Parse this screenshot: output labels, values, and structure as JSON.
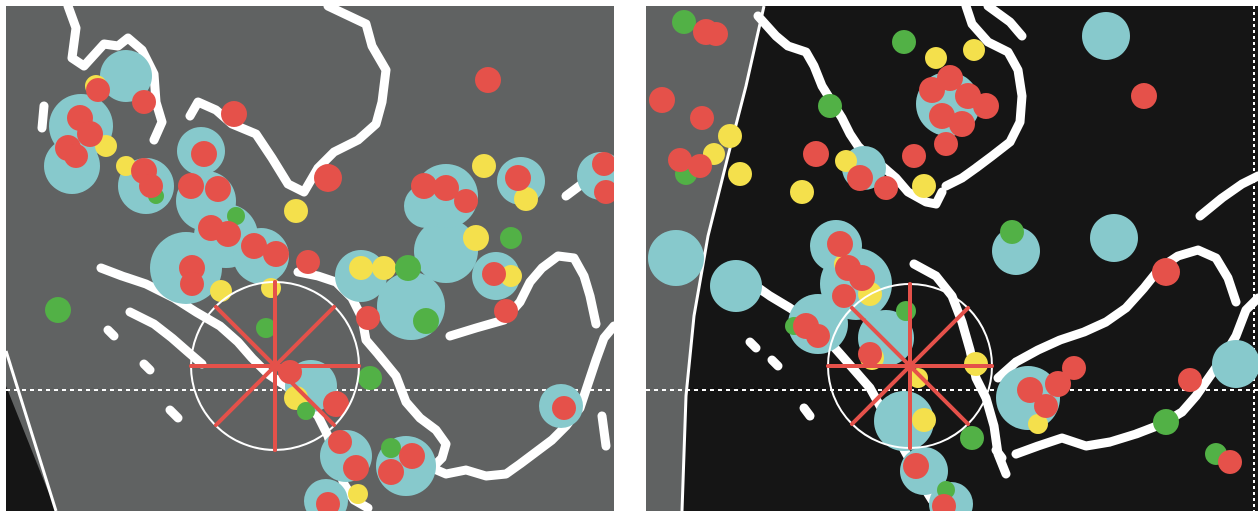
{
  "figure": {
    "panels": [
      {
        "id": "left",
        "background": "#606262",
        "outer_area": "#151515"
      },
      {
        "id": "right",
        "background": "#151515",
        "outer_area": "#606262"
      }
    ]
  },
  "colors": {
    "coastline": "#ffffff",
    "halo": "#87c9cc",
    "point_red": "#e5514a",
    "point_yellow": "#f4e04c",
    "point_green": "#52b146",
    "marker": "#e5514a",
    "marker_ring": "#ffffff",
    "reference_line": "#ffffff"
  }
}
